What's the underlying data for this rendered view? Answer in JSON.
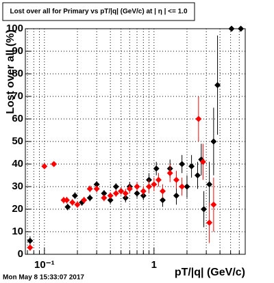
{
  "chart_data": {
    "type": "scatter",
    "title": "Lost over all for Primary vs pT/|q| (GeV/c) at | η | <= 1.0",
    "y_label": "Lost over all (%)",
    "x_label": "pT/|q| (GeV/c)",
    "footer": "Mon May  8 15:33:07 2017",
    "log_x": true,
    "grid": true,
    "xlim": [
      0.067,
      6.8
    ],
    "ylim": [
      0,
      100
    ],
    "xticks": [
      {
        "value": 0.1,
        "label": "10⁻¹"
      },
      1
    ],
    "xminor": [
      0.07,
      0.08,
      0.09,
      0.2,
      0.3,
      0.4,
      0.5,
      0.6,
      0.7,
      0.8,
      0.9,
      2,
      3,
      4,
      5,
      6
    ],
    "yticks": [
      0,
      10,
      20,
      30,
      40,
      50,
      60,
      70,
      80,
      90,
      100
    ],
    "series": [
      {
        "name": "black",
        "color": "#000000",
        "x": [
          0.074,
          0.163,
          0.19,
          0.22,
          0.26,
          0.3,
          0.35,
          0.4,
          0.45,
          0.5,
          0.55,
          0.6,
          0.7,
          0.8,
          0.9,
          1.05,
          1.2,
          1.4,
          1.6,
          1.8,
          2.0,
          2.2,
          2.5,
          2.7,
          2.85,
          3.2,
          3.5,
          3.8,
          5.1,
          6.2
        ],
        "values": [
          6,
          21,
          26,
          23,
          25,
          31,
          27,
          24,
          30,
          28,
          25,
          30,
          27,
          26,
          33,
          38,
          24,
          38,
          26,
          40,
          30,
          39,
          35,
          42,
          20,
          31,
          50,
          75,
          100,
          100
        ],
        "errors": [
          2,
          1.5,
          1.5,
          1.5,
          1.5,
          1.5,
          1.5,
          1.5,
          1.5,
          1.5,
          2,
          2,
          2,
          2,
          3,
          3,
          3,
          4,
          4,
          4,
          5,
          5,
          6,
          7,
          8,
          10,
          15,
          22,
          0,
          0
        ]
      },
      {
        "name": "red",
        "color": "#ff0000",
        "x": [
          0.074,
          0.1,
          0.122,
          0.15,
          0.16,
          0.18,
          0.2,
          0.23,
          0.26,
          0.3,
          0.35,
          0.4,
          0.45,
          0.5,
          0.55,
          0.6,
          0.7,
          0.8,
          0.9,
          1.0,
          1.1,
          1.2,
          1.4,
          1.6,
          1.8,
          2.55,
          2.8,
          3.2,
          3.5
        ],
        "values": [
          3,
          39,
          40,
          24,
          24,
          23,
          22,
          24,
          29,
          29,
          25,
          26,
          27,
          28,
          27,
          29,
          30,
          28,
          30,
          31,
          33,
          28,
          36,
          33,
          30,
          60,
          41,
          14,
          22
        ],
        "errors": [
          1.5,
          1,
          1,
          1.5,
          1.5,
          1.5,
          1.5,
          1.5,
          1.5,
          1.5,
          1.5,
          1.5,
          1.5,
          1.5,
          2,
          2,
          2,
          2,
          3,
          3,
          3,
          3,
          4,
          4,
          4,
          10,
          8,
          9,
          12
        ]
      }
    ]
  }
}
